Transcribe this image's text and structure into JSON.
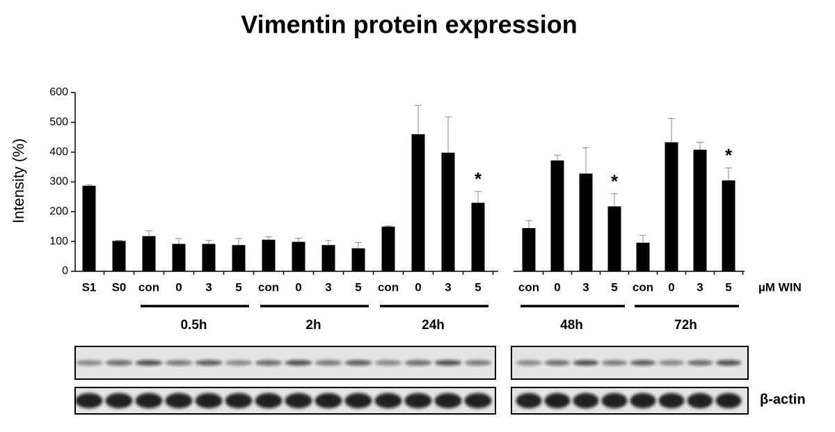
{
  "chart_data": {
    "type": "bar",
    "title": "Vimentin protein expression",
    "y_label": "Intensity (%)",
    "ylim": [
      0,
      600
    ],
    "yticks": [
      0,
      100,
      200,
      300,
      400,
      500,
      600
    ],
    "color": "#000000",
    "x_unit_label": "µM WIN",
    "blot_label": "β-actin",
    "panels": [
      [
        {
          "categories": [
            "S1",
            "S0"
          ],
          "values": [
            287,
            102
          ],
          "errors": [
            3,
            2
          ],
          "value_notes": [
            null,
            null
          ]
        },
        {
          "label": "0.5h",
          "categories": [
            "con",
            "0",
            "3",
            "5"
          ],
          "values": [
            118,
            92,
            92,
            88
          ],
          "errors": [
            18,
            18,
            12,
            22
          ],
          "value_notes": [
            null,
            null,
            null,
            null
          ]
        },
        {
          "label": "2h",
          "categories": [
            "con",
            "0",
            "3",
            "5"
          ],
          "values": [
            106,
            99,
            88,
            77
          ],
          "errors": [
            10,
            12,
            15,
            20
          ],
          "value_notes": [
            null,
            null,
            null,
            null
          ]
        },
        {
          "label": "24h",
          "categories": [
            "con",
            "0",
            "3",
            "5"
          ],
          "values": [
            150,
            460,
            398,
            230
          ],
          "errors": [
            2,
            97,
            120,
            38
          ],
          "value_notes": [
            null,
            null,
            null,
            "*"
          ]
        }
      ],
      [
        {
          "label": "48h",
          "categories": [
            "con",
            "0",
            "3",
            "5"
          ],
          "values": [
            145,
            372,
            328,
            218
          ],
          "errors": [
            25,
            18,
            87,
            42
          ],
          "value_notes": [
            null,
            null,
            null,
            "*"
          ]
        },
        {
          "label": "72h",
          "categories": [
            "con",
            "0",
            "3",
            "5"
          ],
          "values": [
            96,
            433,
            408,
            305
          ],
          "errors": [
            25,
            80,
            25,
            42
          ],
          "value_notes": [
            null,
            null,
            null,
            "*"
          ]
        }
      ]
    ]
  }
}
